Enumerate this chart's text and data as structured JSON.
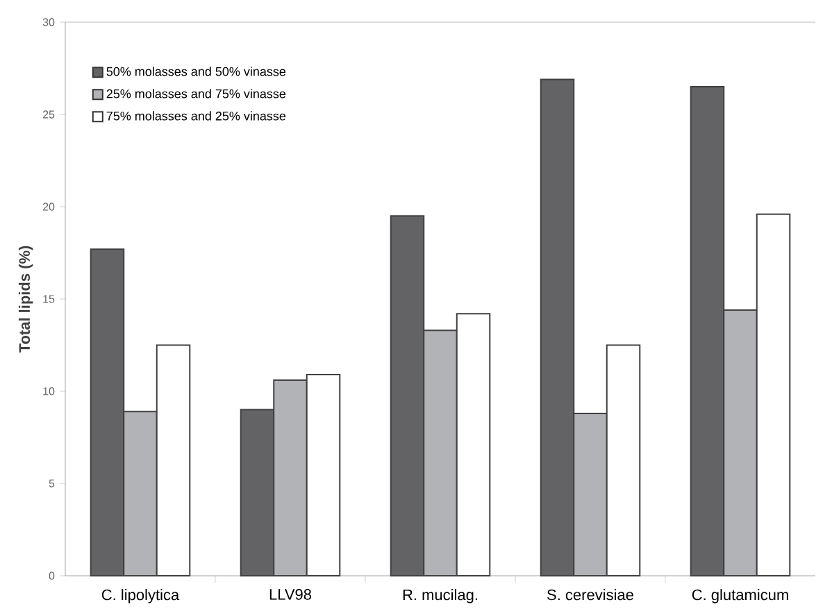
{
  "chart_data": {
    "type": "bar",
    "ylabel": "Total lipids (%)",
    "categories": [
      "C. lipolytica",
      "LLV98",
      "R. mucilag.",
      "S. cerevisiae",
      "C. glutamicum"
    ],
    "series": [
      {
        "name": "50% molasses and 50% vinasse",
        "color": "#636366",
        "values": [
          17.7,
          9.0,
          19.5,
          26.9,
          26.5
        ]
      },
      {
        "name": "25% molasses and 75% vinasse",
        "color": "#b2b3b6",
        "values": [
          8.9,
          10.6,
          13.3,
          8.8,
          14.4
        ]
      },
      {
        "name": "75% molasses and 25% vinasse",
        "color": "#ffffff",
        "values": [
          12.5,
          10.9,
          14.2,
          12.5,
          19.6
        ]
      }
    ],
    "ylim": [
      0,
      30
    ],
    "yticks": [
      0,
      5,
      10,
      15,
      20,
      25,
      30
    ],
    "legend": "top left"
  }
}
